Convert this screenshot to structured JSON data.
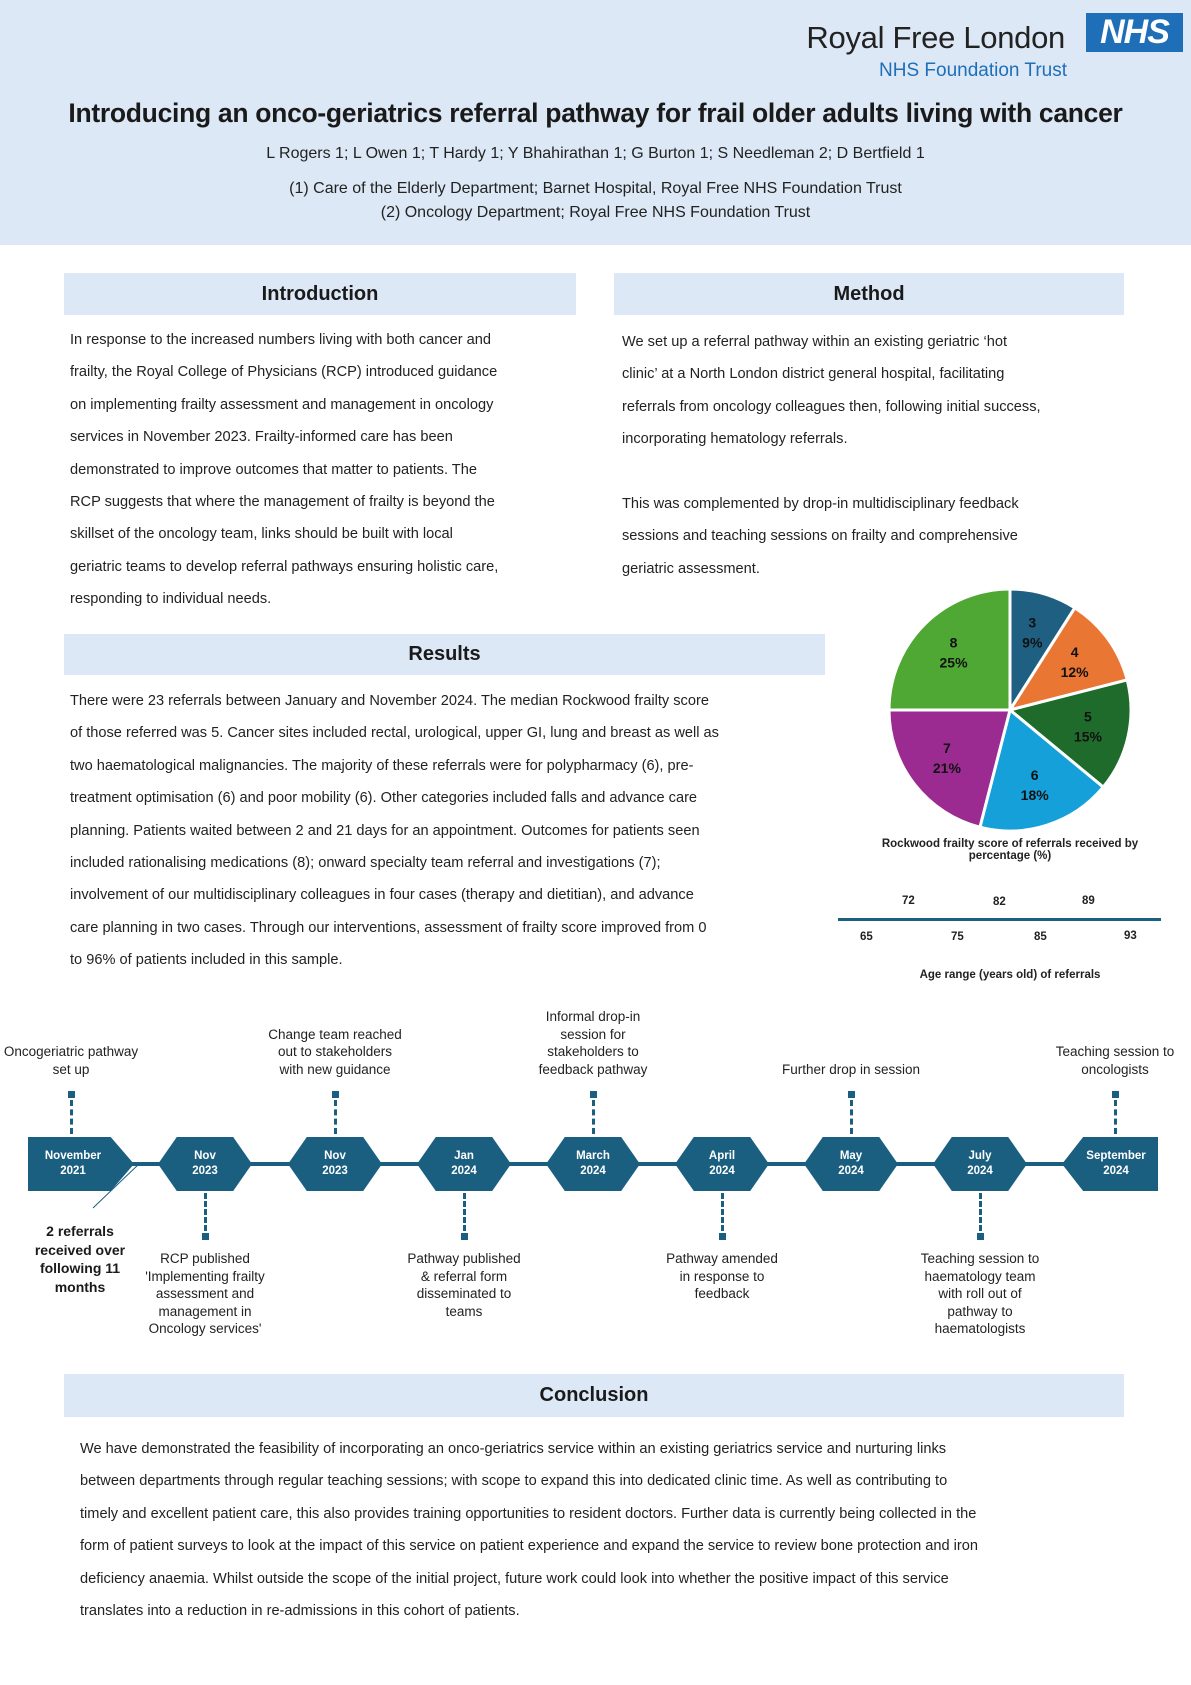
{
  "header": {
    "logo_name": "Royal Free London",
    "logo_badge": "NHS",
    "logo_sub": "NHS Foundation Trust",
    "title": "Introducing an onco-geriatrics referral pathway for frail older adults living with cancer",
    "authors": "L Rogers 1; L Owen 1; T Hardy 1;  Y Bhahirathan 1; G Burton 1; S Needleman 2; D Bertfield 1",
    "affiliation_1": "(1) Care of the Elderly Department; Barnet Hospital, Royal Free NHS Foundation Trust",
    "affiliation_2": "(2) Oncology Department; Royal Free NHS Foundation Trust"
  },
  "introduction": {
    "heading": "Introduction",
    "lines": [
      "In response to the increased numbers living with both cancer and",
      "frailty, the Royal College of Physicians (RCP) introduced guidance",
      "on implementing frailty assessment and management in oncology",
      "services in November 2023. Frailty-informed care has been",
      "demonstrated to improve outcomes that matter to patients. The",
      "RCP suggests that where the management of frailty is beyond the",
      "skillset of the oncology team, links should be built with local",
      "geriatric teams to develop referral pathways ensuring holistic care,",
      "responding to individual needs."
    ]
  },
  "method": {
    "heading": "Method",
    "lines_1": [
      "We set up a referral pathway within an existing geriatric ‘hot",
      "clinic’ at a North London district general hospital, facilitating",
      "referrals from oncology colleagues then, following initial success,",
      "incorporating hematology referrals."
    ],
    "lines_2": [
      "This was complemented by drop-in multidisciplinary feedback",
      "sessions and teaching sessions on frailty and comprehensive",
      "geriatric assessment."
    ]
  },
  "results": {
    "heading": "Results",
    "lines": [
      "There were 23 referrals between January and November 2024. The median Rockwood frailty score",
      "of those referred was 5. Cancer sites included rectal, urological, upper GI, lung and breast as well as",
      "two haematological malignancies. The majority of these referrals were for polypharmacy (6), pre-",
      "treatment optimisation (6) and poor mobility (6). Other categories included falls and advance care",
      "planning. Patients waited between 2 and 21 days for an appointment. Outcomes for patients seen",
      "included rationalising medications (8); onward specialty team referral and investigations (7);",
      "involvement of our multidisciplinary colleagues in four cases (therapy and dietitian), and advance",
      "care planning in two cases. Through our interventions, assessment of frailty score improved from 0",
      "to 96% of patients included in this sample."
    ]
  },
  "chart_data": [
    {
      "type": "pie",
      "title": "Rockwood frailty score of referrals received by percentage (%)",
      "categories": [
        "3",
        "4",
        "5",
        "6",
        "7",
        "8"
      ],
      "values": [
        9,
        12,
        15,
        18,
        21,
        25
      ],
      "labels": [
        "9%",
        "12%",
        "15%",
        "18%",
        "21%",
        "25%"
      ],
      "colors": [
        "#1f5f82",
        "#e97633",
        "#1e6b2b",
        "#16a0d9",
        "#9b2b90",
        "#4fa833"
      ]
    },
    {
      "type": "table",
      "title": "Age range (years old) of referrals",
      "upper_values": [
        "72",
        "82",
        "89"
      ],
      "lower_values": [
        "65",
        "75",
        "85",
        "93"
      ]
    }
  ],
  "timeline": {
    "referrals_note": "2 referrals received over following 11 months",
    "nodes": [
      {
        "date": [
          "November",
          "2021"
        ],
        "top": "Oncogeriatric pathway set up",
        "bottom": ""
      },
      {
        "date": [
          "Nov",
          "2023"
        ],
        "top": "",
        "bottom": "RCP published 'Implementing frailty assessment and management in Oncology services'"
      },
      {
        "date": [
          "Nov",
          "2023"
        ],
        "top": "Change team reached out to stakeholders with new guidance",
        "bottom": ""
      },
      {
        "date": [
          "Jan",
          "2024"
        ],
        "top": "",
        "bottom": "Pathway published & referral form disseminated to teams"
      },
      {
        "date": [
          "March",
          "2024"
        ],
        "top": "Informal drop-in session for stakeholders to feedback pathway",
        "bottom": ""
      },
      {
        "date": [
          "April",
          "2024"
        ],
        "top": "",
        "bottom": "Pathway amended in response to feedback"
      },
      {
        "date": [
          "May",
          "2024"
        ],
        "top": "Further drop in session",
        "bottom": ""
      },
      {
        "date": [
          "July",
          "2024"
        ],
        "top": "",
        "bottom": "Teaching session to haematology team with roll out of pathway to haematologists"
      },
      {
        "date": [
          "September",
          "2024"
        ],
        "top": "Teaching session to oncologists",
        "bottom": ""
      }
    ],
    "color": "#1b5f80"
  },
  "conclusion": {
    "heading": "Conclusion",
    "lines": [
      "We have demonstrated the feasibility of incorporating an onco-geriatrics service within an existing geriatrics service and nurturing links",
      "between departments through regular teaching sessions; with scope to expand this into dedicated clinic time. As well as contributing to",
      "timely and excellent patient care, this also provides training opportunities to resident doctors. Further data is currently being collected in the",
      "form of patient surveys to look at the impact of this service on patient experience and expand the service to review bone protection and iron",
      "deficiency anaemia. Whilst outside the scope of the initial project, future work could look into whether the positive impact of this service",
      "translates into a reduction in re-admissions in this cohort of patients."
    ]
  }
}
